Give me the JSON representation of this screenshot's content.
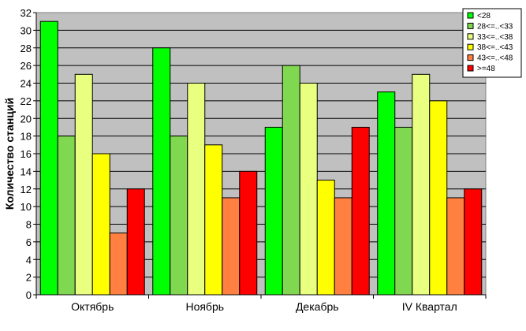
{
  "chart_data": {
    "type": "bar",
    "title": "",
    "xlabel": "",
    "ylabel": "Количество станций",
    "ylim": [
      0,
      32
    ],
    "ytick_step": 2,
    "grid": true,
    "legend_position": "top-right",
    "plot_background": "#c0c0c0",
    "categories": [
      "Октябрь",
      "Ноябрь",
      "Декабрь",
      "IV Квартал"
    ],
    "series": [
      {
        "name": "<28",
        "color": "#00ff00",
        "values": [
          31,
          28,
          19,
          23
        ]
      },
      {
        "name": "28<=..<33",
        "color": "#80d850",
        "values": [
          18,
          18,
          26,
          19
        ]
      },
      {
        "name": "33<=..<38",
        "color": "#e8ff80",
        "values": [
          25,
          24,
          24,
          25
        ]
      },
      {
        "name": "38<=..<43",
        "color": "#ffff00",
        "values": [
          16,
          17,
          13,
          22
        ]
      },
      {
        "name": "43<=..<48",
        "color": "#ff8040",
        "values": [
          7,
          11,
          11,
          11
        ]
      },
      {
        "name": ">=48",
        "color": "#ff0000",
        "values": [
          12,
          14,
          19,
          12
        ]
      }
    ]
  }
}
